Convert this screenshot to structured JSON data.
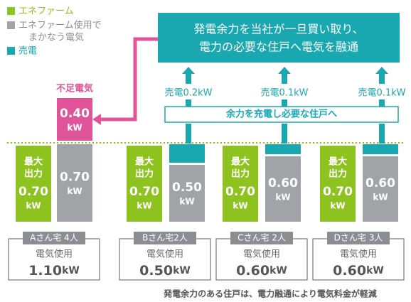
{
  "legend": [
    "エネファーム",
    [
      "エネファーム使用で",
      "まかなう電気"
    ],
    "売電"
  ],
  "callout": [
    "発電余力を当社が一旦買い取り、",
    "電力の必要な住戸へ電気を融通"
  ],
  "sales": [
    "売電0.2kW",
    "売電0.1kW",
    "売電0.1kW"
  ],
  "storage": "余力を充電し必要な住戸へ",
  "shortage": {
    "label": "不足電気",
    "value": "0.40",
    "unit": "kW"
  },
  "houses": [
    {
      "green": [
        "最大",
        "出力",
        "0.70",
        "kW"
      ],
      "gray": [
        "0.70",
        "kW"
      ],
      "name": "Aさん宅 4人",
      "usage_label": "電気使用",
      "usage": "1.10",
      "usage_unit": "kW"
    },
    {
      "green": [
        "最大",
        "出力",
        "0.70",
        "kW"
      ],
      "gray": [
        "0.50",
        "kW"
      ],
      "name": "Bさん宅2人",
      "usage_label": "電気使用",
      "usage": "0.50",
      "usage_unit": "kW"
    },
    {
      "green": [
        "最大",
        "出力",
        "0.70",
        "kW"
      ],
      "gray": [
        "0.60",
        "kW"
      ],
      "name": "Cさん宅 2人",
      "usage_label": "電気使用",
      "usage": "0.60",
      "usage_unit": "kW"
    },
    {
      "green": [
        "最大",
        "出力",
        "0.70",
        "kW"
      ],
      "gray": [
        "0.60",
        "kW"
      ],
      "name": "Dさん宅 3人",
      "usage_label": "電気使用",
      "usage": "0.60",
      "usage_unit": "kW"
    }
  ],
  "footer": "発電余力のある住戸は、電力融通により電気料金が軽減"
}
